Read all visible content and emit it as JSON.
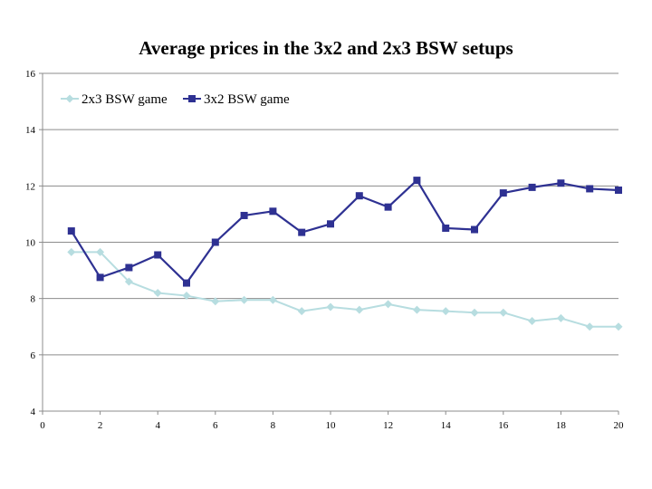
{
  "chart_data": {
    "type": "line",
    "title": "Average prices in the 3x2 and 2x3 BSW setups",
    "xlabel": "",
    "ylabel": "",
    "xlim": [
      0,
      20
    ],
    "ylim": [
      4,
      16
    ],
    "xticks": [
      0,
      2,
      4,
      6,
      8,
      10,
      12,
      14,
      16,
      18,
      20
    ],
    "yticks": [
      4,
      6,
      8,
      10,
      12,
      14,
      16
    ],
    "grid": true,
    "legend_position": "top-left",
    "series": [
      {
        "name": "2x3 BSW game",
        "color": "#B7DDE0",
        "marker": "diamond",
        "x": [
          1,
          2,
          3,
          4,
          5,
          6,
          7,
          8,
          9,
          10,
          11,
          12,
          13,
          14,
          15,
          16,
          17,
          18,
          19,
          20
        ],
        "values": [
          9.65,
          9.65,
          8.6,
          8.2,
          8.1,
          7.9,
          7.95,
          7.95,
          7.55,
          7.7,
          7.6,
          7.8,
          7.6,
          7.55,
          7.5,
          7.5,
          7.2,
          7.3,
          7.0,
          7.0
        ]
      },
      {
        "name": "3x2 BSW game",
        "color": "#2E3192",
        "marker": "square",
        "x": [
          1,
          2,
          3,
          4,
          5,
          6,
          7,
          8,
          9,
          10,
          11,
          12,
          13,
          14,
          15,
          16,
          17,
          18,
          19,
          20
        ],
        "values": [
          10.4,
          8.75,
          9.1,
          9.55,
          8.55,
          10.0,
          10.95,
          11.1,
          10.35,
          10.65,
          11.65,
          11.25,
          12.2,
          10.5,
          10.45,
          11.75,
          11.95,
          12.1,
          11.9,
          11.85
        ]
      }
    ]
  },
  "colors": {
    "gridline": "#8c8c8c",
    "axis": "#8c8c8c",
    "text": "#000000"
  }
}
